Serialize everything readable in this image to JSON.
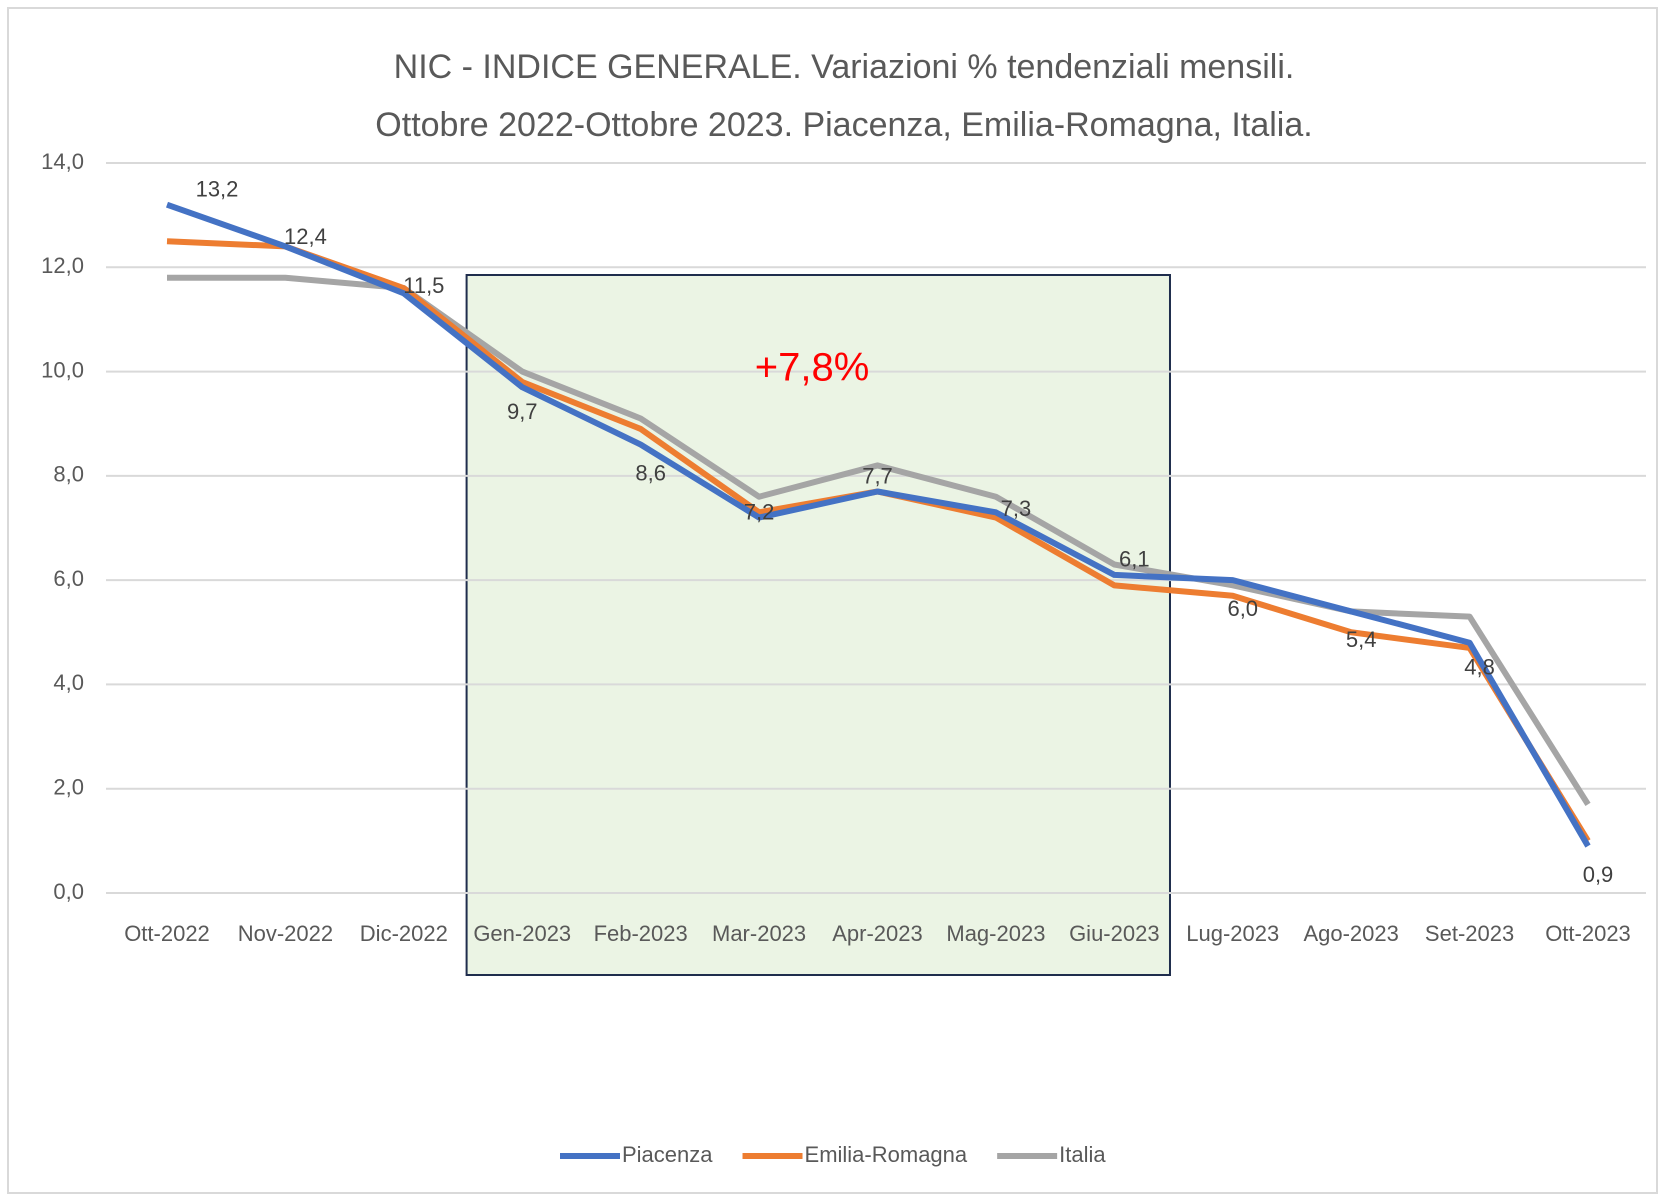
{
  "chart_data": {
    "type": "line",
    "title": "NIC - INDICE GENERALE. Variazioni % tendenziali mensili.",
    "subtitle": "Ottobre 2022-Ottobre 2023. Piacenza, Emilia-Romagna, Italia.",
    "annotation": "+7,8%",
    "categories": [
      "Ott-2022",
      "Nov-2022",
      "Dic-2022",
      "Gen-2023",
      "Feb-2023",
      "Mar-2023",
      "Apr-2023",
      "Mag-2023",
      "Giu-2023",
      "Lug-2023",
      "Ago-2023",
      "Set-2023",
      "Ott-2023"
    ],
    "series": [
      {
        "name": "Piacenza",
        "color": "#4472c4",
        "values": [
          13.2,
          12.4,
          11.5,
          9.7,
          8.6,
          7.2,
          7.7,
          7.3,
          6.1,
          6.0,
          5.4,
          4.8,
          0.9
        ],
        "value_labels": [
          "13,2",
          "12,4",
          "11,5",
          "9,7",
          "8,6",
          "7,2",
          "7,7",
          "7,3",
          "6,1",
          "6,0",
          "5,4",
          "4,8",
          "0,9"
        ]
      },
      {
        "name": "Emilia-Romagna",
        "color": "#ed7d31",
        "values": [
          12.5,
          12.4,
          11.6,
          9.8,
          8.9,
          7.3,
          7.7,
          7.2,
          5.9,
          5.7,
          5.0,
          4.7,
          1.0
        ]
      },
      {
        "name": "Italia",
        "color": "#a5a5a5",
        "values": [
          11.8,
          11.8,
          11.6,
          10.0,
          9.1,
          7.6,
          8.2,
          7.6,
          6.3,
          5.9,
          5.4,
          5.3,
          1.7
        ]
      }
    ],
    "ylim": [
      0,
      14
    ],
    "yticks": [
      {
        "value": 0,
        "label": "0,0"
      },
      {
        "value": 2,
        "label": "2,0"
      },
      {
        "value": 4,
        "label": "4,0"
      },
      {
        "value": 6,
        "label": "6,0"
      },
      {
        "value": 8,
        "label": "8,0"
      },
      {
        "value": 10,
        "label": "10,0"
      },
      {
        "value": 12,
        "label": "12,0"
      },
      {
        "value": 14,
        "label": "14,0"
      }
    ],
    "grid": true,
    "legend": "bottom"
  }
}
